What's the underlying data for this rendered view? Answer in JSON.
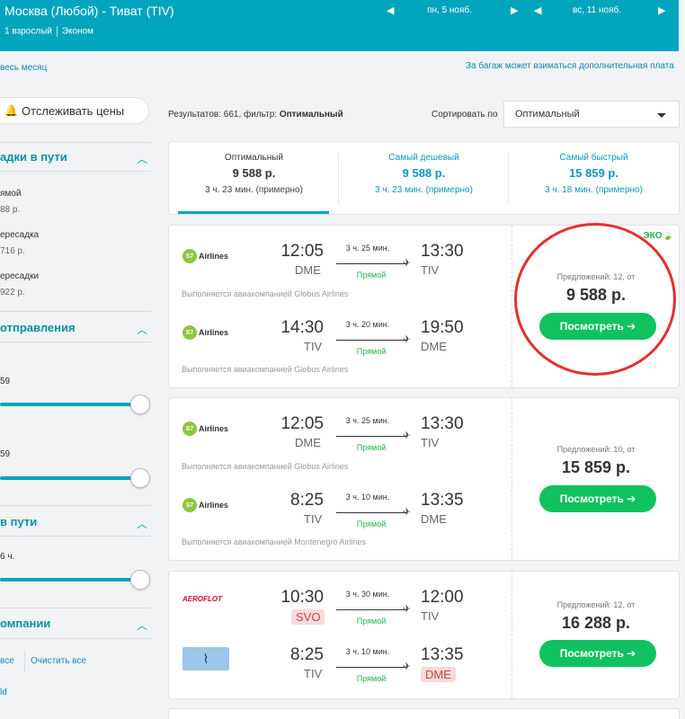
{
  "header": {
    "route": "Москва (Любой) - Тиват (TIV)",
    "passengers": "1 взрослый",
    "cabin": "Эконом",
    "date_out": "пн, 5 нояб.",
    "date_back": "вс, 11 нояб."
  },
  "links": {
    "whole_month": "весь месяц",
    "baggage": "За багаж может взиматься дополнительная плата"
  },
  "track_button": "Отслеживать цены",
  "sidebar": {
    "stops_title": "адки в пути",
    "stops": [
      {
        "label": "ямой",
        "price": "88 р."
      },
      {
        "label": "ересадка",
        "price": "716 р."
      },
      {
        "label": "ересадки",
        "price": "922 р."
      }
    ],
    "departure_title": "отправления",
    "dep_slider1_label": "",
    "dep_slider1_value": "59",
    "dep_slider2_label": "",
    "dep_slider2_value": "59",
    "duration_title": "в пути",
    "duration_value": "6 ч.",
    "airlines_title": "омпании",
    "select_all": "все",
    "clear_all": "Очистить все",
    "airline_first": "ld"
  },
  "results": {
    "prefix": "Результатов: 661, фильтр:",
    "filter": "Оптимальный",
    "sort_label": "Сортировать по",
    "sort_value": "Оптимальный"
  },
  "tabs": [
    {
      "title": "Оптимальный",
      "price": "9 588 р.",
      "duration": "3 ч. 23 мин. (примерно)"
    },
    {
      "title": "Самый дешевый",
      "price": "9 588 р.",
      "duration": "3 ч. 23 мин. (примерно)"
    },
    {
      "title": "Самый быстрый",
      "price": "15 859 р.",
      "duration": "3 ч. 18 мин. (примерно)"
    }
  ],
  "cards": [
    {
      "eco": "ЭКО",
      "offers": "Предложений: 12, от",
      "price": "9 588 р.",
      "button": "Посмотреть ➔",
      "segments": [
        {
          "airline": "Airlines",
          "dep_time": "12:05",
          "dep_ap": "DME",
          "duration": "3 ч. 25 мин.",
          "type": "Прямой",
          "arr_time": "13:30",
          "arr_ap": "TIV",
          "operated": "Выполняется авиакомпанией Globus Airlines"
        },
        {
          "airline": "Airlines",
          "dep_time": "14:30",
          "dep_ap": "TIV",
          "duration": "3 ч. 20 мин.",
          "type": "Прямой",
          "arr_time": "19:50",
          "arr_ap": "DME",
          "operated": "Выполняется авиакомпанией Globus Airlines"
        }
      ]
    },
    {
      "offers": "Предложений: 10, от",
      "price": "15 859 р.",
      "button": "Посмотреть ➔",
      "segments": [
        {
          "airline": "Airlines",
          "dep_time": "12:05",
          "dep_ap": "DME",
          "duration": "3 ч. 25 мин.",
          "type": "Прямой",
          "arr_time": "13:30",
          "arr_ap": "TIV",
          "operated": "Выполняется авиакомпанией Globus Airlines"
        },
        {
          "airline": "Airlines",
          "dep_time": "8:25",
          "dep_ap": "TIV",
          "duration": "3 ч. 10 мин.",
          "type": "Прямой",
          "arr_time": "13:35",
          "arr_ap": "DME",
          "operated": "Выполняется авиакомпанией Montenegro Airlines"
        }
      ]
    },
    {
      "offers": "Предложений: 12, от",
      "price": "16 288 р.",
      "button": "Посмотреть ➔",
      "segments": [
        {
          "airline": "AEROFLOT",
          "dep_time": "10:30",
          "dep_ap": "SVO",
          "duration": "3 ч. 30 мин.",
          "type": "Прямой",
          "arr_time": "12:00",
          "arr_ap": "TIV"
        },
        {
          "airline": "",
          "dep_time": "8:25",
          "dep_ap": "TIV",
          "duration": "3 ч. 10 мин.",
          "type": "Прямой",
          "arr_time": "13:35",
          "arr_ap": "DME"
        }
      ]
    }
  ]
}
